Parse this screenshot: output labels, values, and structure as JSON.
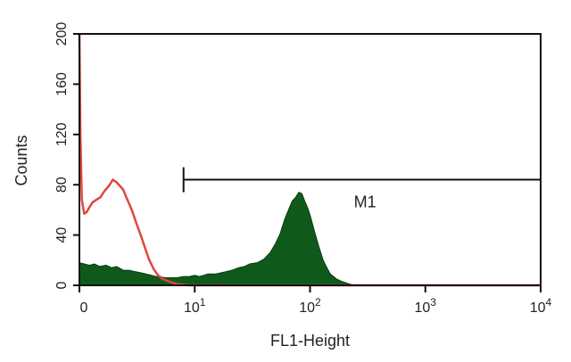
{
  "chart_data": {
    "type": "area",
    "xlabel": "FL1-Height",
    "ylabel": "Counts",
    "x_scale": "log",
    "x_ticks": [
      {
        "value": 1,
        "base": "0",
        "exp": ""
      },
      {
        "value": 10,
        "base": "10",
        "exp": "1"
      },
      {
        "value": 100,
        "base": "10",
        "exp": "2"
      },
      {
        "value": 1000,
        "base": "10",
        "exp": "3"
      },
      {
        "value": 10000,
        "base": "10",
        "exp": "4"
      }
    ],
    "y_ticks": [
      0,
      40,
      80,
      120,
      160,
      200
    ],
    "xlim": [
      1,
      10000
    ],
    "ylim": [
      0,
      200
    ],
    "grid": false,
    "gate": {
      "label": "M1",
      "x_start": 8,
      "x_end": 10000,
      "y_level": 84
    },
    "series": [
      {
        "kind": "filled",
        "color": "#0f5a1a",
        "points": [
          [
            1.0,
            18
          ],
          [
            1.1,
            17
          ],
          [
            1.22,
            16
          ],
          [
            1.35,
            17
          ],
          [
            1.5,
            15
          ],
          [
            1.7,
            16
          ],
          [
            1.9,
            14
          ],
          [
            2.1,
            15
          ],
          [
            2.4,
            12
          ],
          [
            2.7,
            12
          ],
          [
            3.0,
            11
          ],
          [
            3.4,
            10
          ],
          [
            3.8,
            9
          ],
          [
            4.2,
            8
          ],
          [
            4.6,
            7
          ],
          [
            5.0,
            7
          ],
          [
            5.5,
            6
          ],
          [
            6.0,
            6
          ],
          [
            6.5,
            6
          ],
          [
            7.0,
            6
          ],
          [
            8.0,
            7
          ],
          [
            9.0,
            7
          ],
          [
            10.0,
            8
          ],
          [
            11.0,
            7
          ],
          [
            12.0,
            8
          ],
          [
            13.0,
            9
          ],
          [
            15.0,
            9
          ],
          [
            17.0,
            10
          ],
          [
            19.0,
            11
          ],
          [
            21.0,
            12
          ],
          [
            24.0,
            14
          ],
          [
            27.0,
            15
          ],
          [
            30.0,
            17
          ],
          [
            35.0,
            18
          ],
          [
            40.0,
            21
          ],
          [
            45.0,
            26
          ],
          [
            50.0,
            33
          ],
          [
            55.0,
            41
          ],
          [
            60.0,
            52
          ],
          [
            65.0,
            60
          ],
          [
            70.0,
            67
          ],
          [
            75.0,
            70
          ],
          [
            80.0,
            74
          ],
          [
            85.0,
            73
          ],
          [
            90.0,
            67
          ],
          [
            95.0,
            62
          ],
          [
            100.0,
            56
          ],
          [
            110.0,
            42
          ],
          [
            120.0,
            30
          ],
          [
            130.0,
            20
          ],
          [
            140.0,
            14
          ],
          [
            150.0,
            9
          ],
          [
            170.0,
            5
          ],
          [
            190.0,
            3
          ],
          [
            220.0,
            1
          ],
          [
            250.0,
            0
          ]
        ]
      },
      {
        "kind": "outline",
        "color": "#e0463d",
        "points": [
          [
            1.0,
            200
          ],
          [
            1.02,
            120
          ],
          [
            1.05,
            68
          ],
          [
            1.1,
            57
          ],
          [
            1.15,
            58
          ],
          [
            1.22,
            62
          ],
          [
            1.3,
            66
          ],
          [
            1.4,
            68
          ],
          [
            1.52,
            70
          ],
          [
            1.65,
            75
          ],
          [
            1.8,
            79
          ],
          [
            1.95,
            84
          ],
          [
            2.1,
            82
          ],
          [
            2.25,
            79
          ],
          [
            2.4,
            76
          ],
          [
            2.55,
            70
          ],
          [
            2.7,
            65
          ],
          [
            2.9,
            58
          ],
          [
            3.1,
            50
          ],
          [
            3.4,
            40
          ],
          [
            3.7,
            30
          ],
          [
            4.0,
            21
          ],
          [
            4.4,
            13
          ],
          [
            4.8,
            8
          ],
          [
            5.3,
            5
          ],
          [
            6.0,
            3
          ],
          [
            7.0,
            1
          ],
          [
            9.0,
            0
          ],
          [
            20.0,
            0
          ],
          [
            100.0,
            0
          ],
          [
            1000.0,
            0
          ],
          [
            10000.0,
            0
          ]
        ]
      }
    ]
  }
}
